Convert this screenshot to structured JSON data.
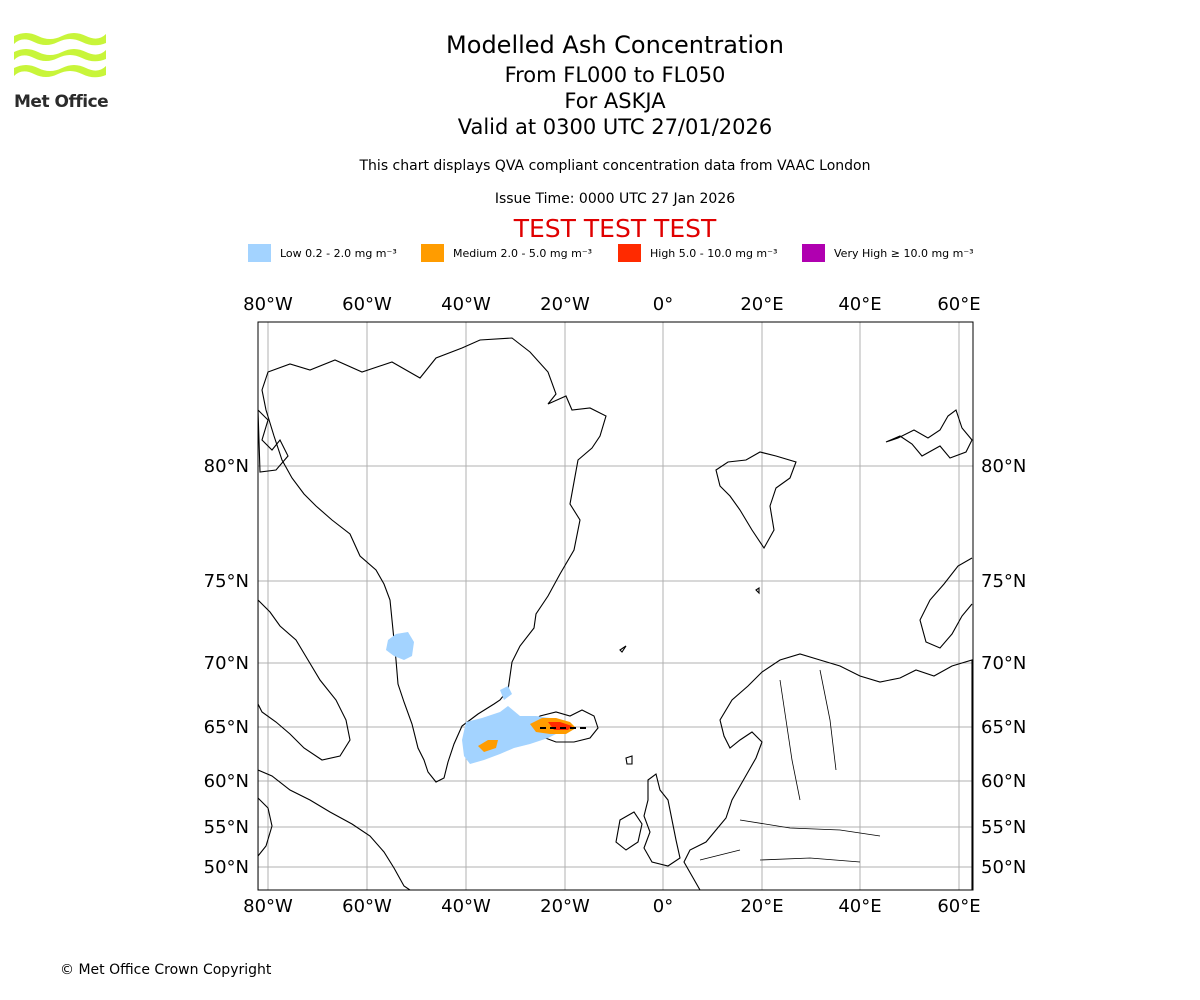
{
  "branding": {
    "logo_text": "Met Office",
    "logo_color": "#c8f53a"
  },
  "header": {
    "title": "Modelled Ash Concentration",
    "level_range": "From FL000 to FL050",
    "volcano": "For ASKJA",
    "valid_time": "Valid at 0300 UTC 27/01/2026",
    "compliance_note": "This chart displays QVA compliant concentration data from VAAC London",
    "issue_time": "Issue Time: 0000 UTC 27 Jan 2026",
    "test_banner": "TEST TEST TEST"
  },
  "legend": [
    {
      "label": "Low 0.2 - 2.0 mg m⁻³",
      "color": "#a3d3ff"
    },
    {
      "label": "Medium 2.0 - 5.0 mg m⁻³",
      "color": "#ff9c00"
    },
    {
      "label": "High 5.0 - 10.0 mg m⁻³",
      "color": "#ff2a00"
    },
    {
      "label": "Very High ≥ 10.0 mg m⁻³",
      "color": "#b000b0"
    }
  ],
  "map": {
    "longitude_labels": [
      "80°W",
      "60°W",
      "40°W",
      "20°W",
      "0°",
      "20°E",
      "40°E",
      "60°E"
    ],
    "latitude_labels": [
      "80°N",
      "75°N",
      "70°N",
      "65°N",
      "60°N",
      "55°N",
      "50°N"
    ],
    "gridline_color": "#b0b0b0",
    "ash_source": {
      "name": "ASKJA",
      "lat": 65.03,
      "lon": -16.75
    }
  },
  "footer": {
    "copyright": "© Met Office Crown Copyright"
  }
}
